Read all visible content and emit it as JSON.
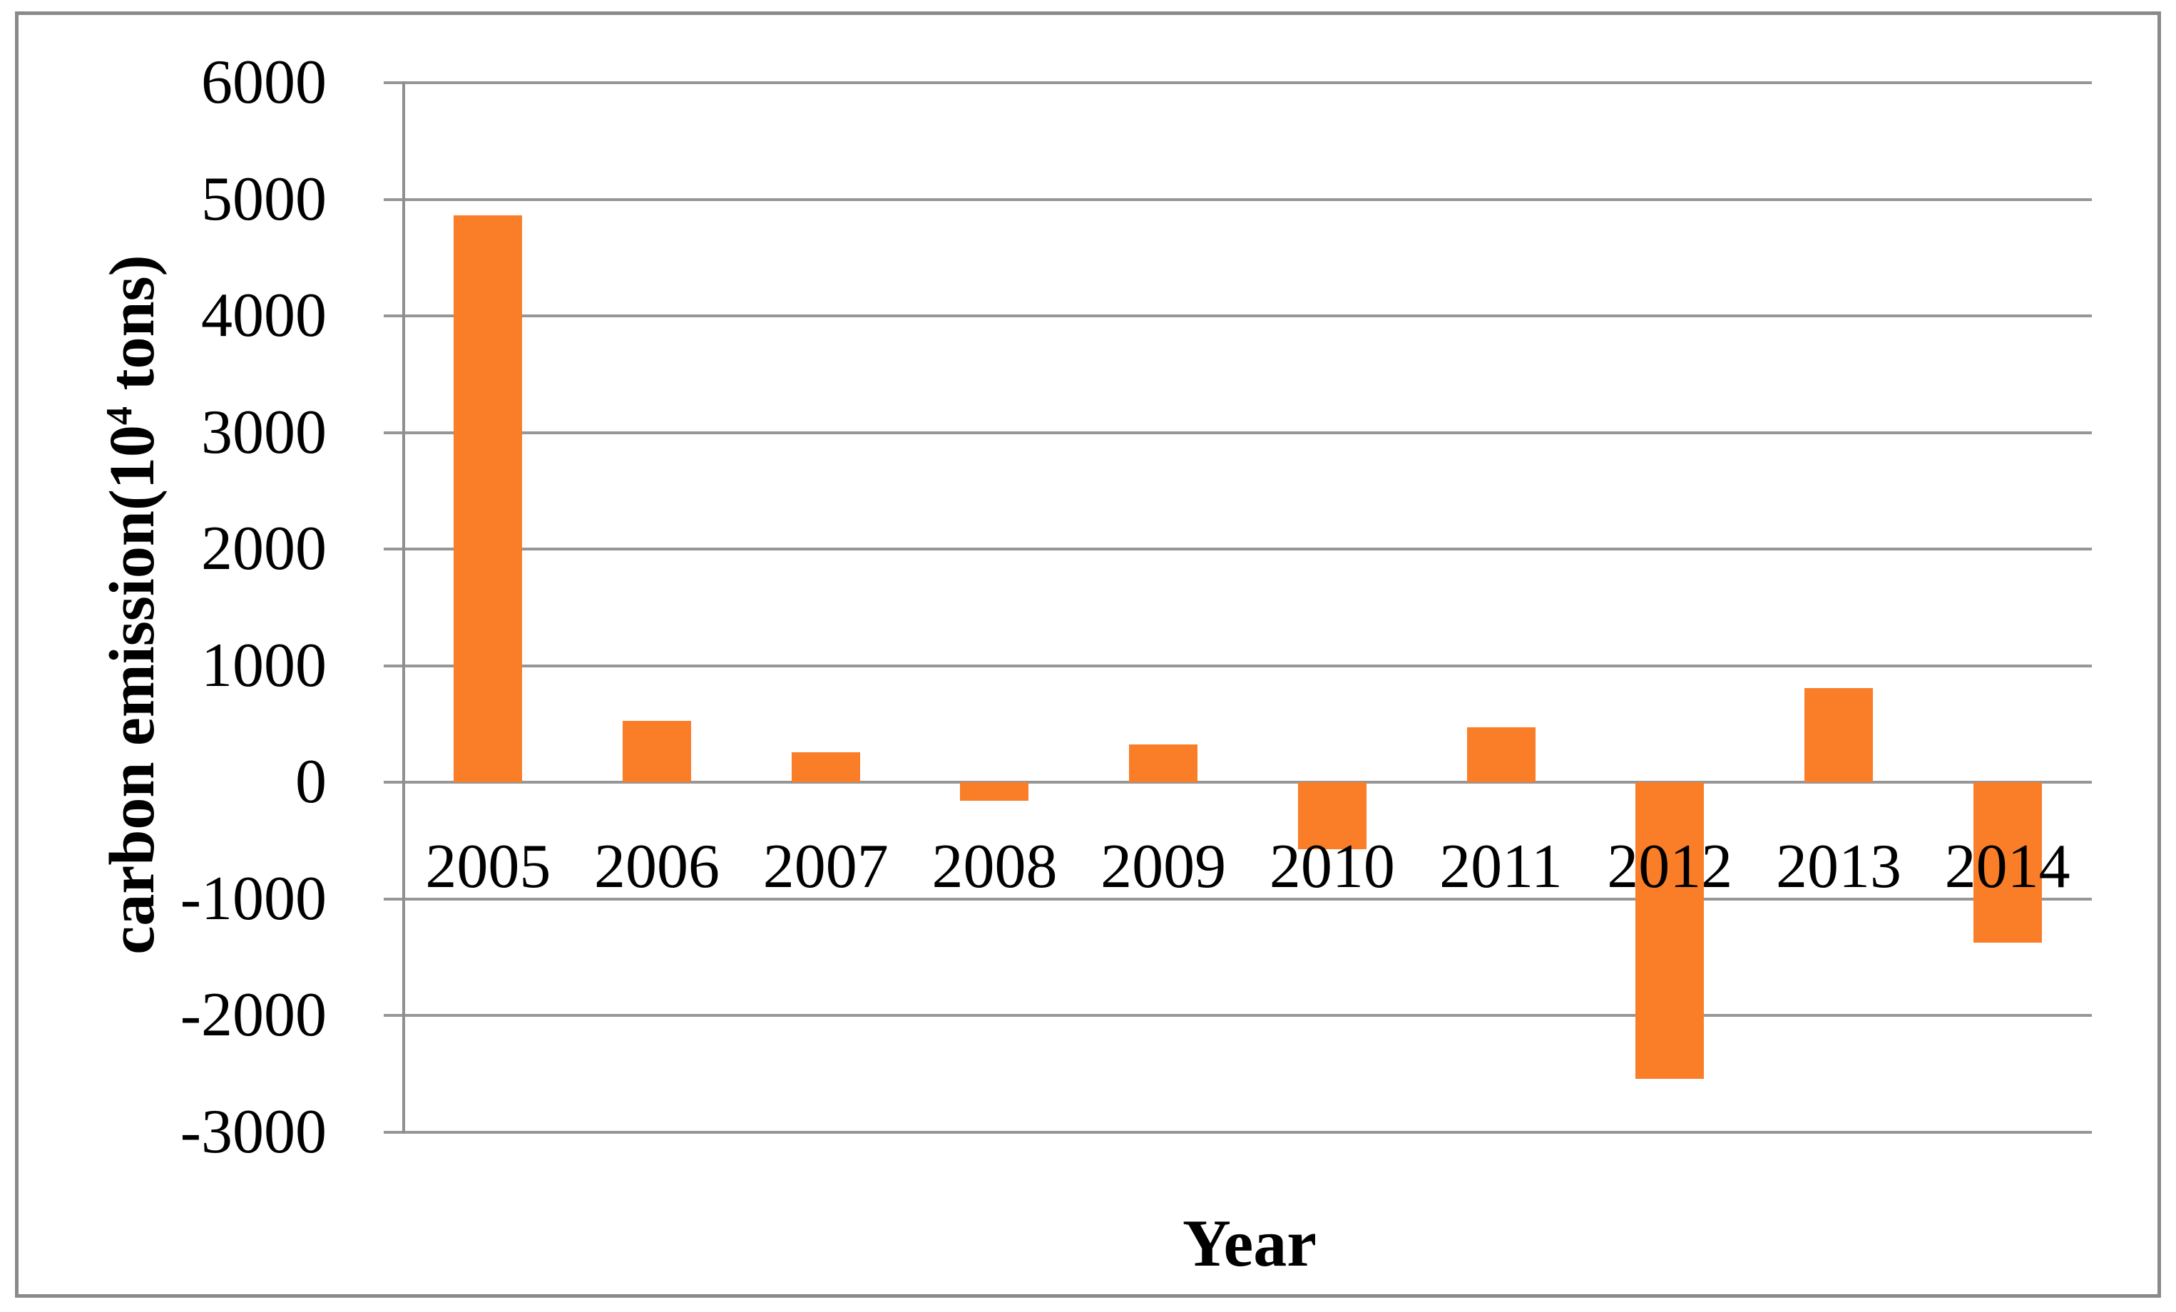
{
  "figure": {
    "xlabel": "Year",
    "ylabel_prefix": "carbon emission(10",
    "ylabel_sup": "4",
    "ylabel_suffix": " tons)"
  },
  "chart_data": {
    "type": "bar",
    "title": "",
    "categories": [
      "2005",
      "2006",
      "2007",
      "2008",
      "2009",
      "2010",
      "2011",
      "2012",
      "2013",
      "2014"
    ],
    "values": [
      4860,
      530,
      260,
      -160,
      325,
      -575,
      470,
      -2540,
      810,
      -1375
    ],
    "series": [
      {
        "name": "carbon emission",
        "values": [
          4860,
          530,
          260,
          -160,
          325,
          -575,
          470,
          -2540,
          810,
          -1375
        ]
      }
    ],
    "xlabel": "Year",
    "ylabel": "carbon emission(10⁴ tons)",
    "ylim": [
      -3000,
      6000
    ],
    "ytick_step": 1000,
    "yticks": [
      "6000",
      "5000",
      "4000",
      "3000",
      "2000",
      "1000",
      "0",
      "-1000",
      "-2000",
      "-3000"
    ],
    "grid": true,
    "legend": false,
    "bar_color": "#FA7D28",
    "gridline_color": "#969696",
    "axis_color": "#8F8F8F",
    "frame_color": "#8A8A8A",
    "text_color": "#000000"
  }
}
